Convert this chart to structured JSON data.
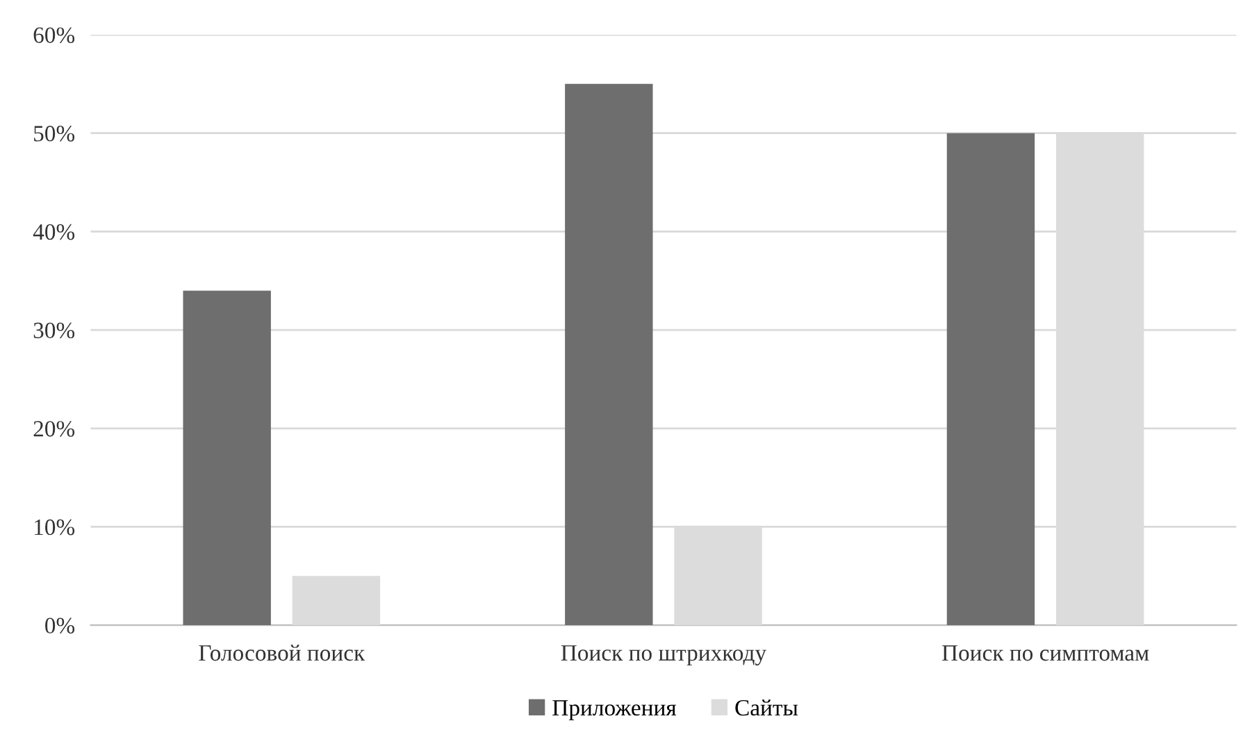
{
  "chart_data": {
    "type": "bar",
    "categories": [
      "Голосовой поиск",
      "Поиск по штрихкоду",
      "Поиск по симптомам"
    ],
    "series": [
      {
        "name": "Приложения",
        "color": "#6e6e6e",
        "values": [
          34,
          55,
          50
        ]
      },
      {
        "name": "Сайты",
        "color": "#dcdcdc",
        "values": [
          5,
          10,
          50
        ]
      }
    ],
    "ylim": [
      0,
      60
    ],
    "yticks": [
      {
        "value": 0,
        "label": "0%"
      },
      {
        "value": 10,
        "label": "10%"
      },
      {
        "value": 20,
        "label": "20%"
      },
      {
        "value": 30,
        "label": "30%"
      },
      {
        "value": 40,
        "label": "40%"
      },
      {
        "value": 50,
        "label": "50%"
      },
      {
        "value": 60,
        "label": "60%"
      }
    ],
    "grid": "y",
    "legend": "bottom"
  }
}
